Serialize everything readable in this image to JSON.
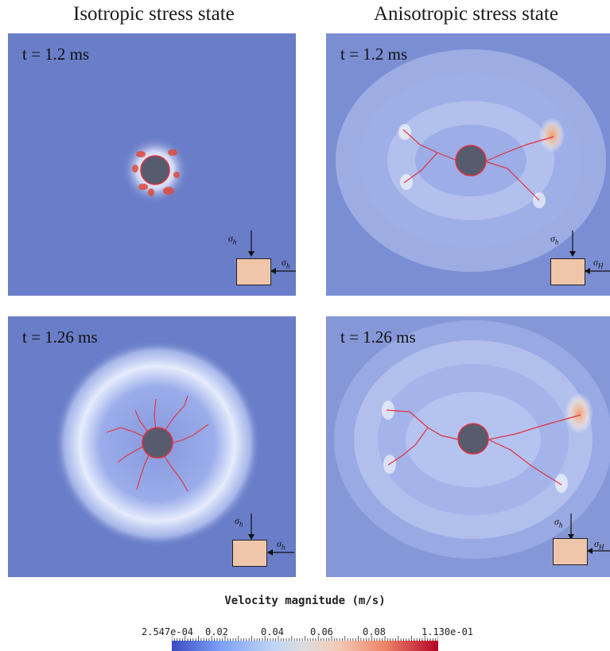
{
  "titles": {
    "left": "Isotropic stress state",
    "right": "Anisotropic stress state"
  },
  "panels": {
    "top_left": {
      "time": "t = 1.2 ms",
      "sigma_top": "h",
      "sigma_side": "h"
    },
    "top_right": {
      "time": "t = 1.2 ms",
      "sigma_top": "h",
      "sigma_side": "H"
    },
    "bottom_left": {
      "time": "t = 1.26 ms",
      "sigma_top": "h",
      "sigma_side": "h"
    },
    "bottom_right": {
      "time": "t = 1.26 ms",
      "sigma_top": "h",
      "sigma_side": "H"
    }
  },
  "colorbar": {
    "title": "Velocity magnitude (m/s)",
    "ticks": [
      "2.547e-04",
      "0.02",
      "0.04",
      "0.06",
      "0.08",
      "1.130e-01"
    ],
    "colors": {
      "low": "#3b4cc0",
      "mid": "#dddcdc",
      "high": "#b40426"
    }
  },
  "colors": {
    "background_field": "#6a7dc8",
    "borehole": "#565c6e",
    "fracture": "#e0303c",
    "stress_box": "#efc6aa"
  }
}
